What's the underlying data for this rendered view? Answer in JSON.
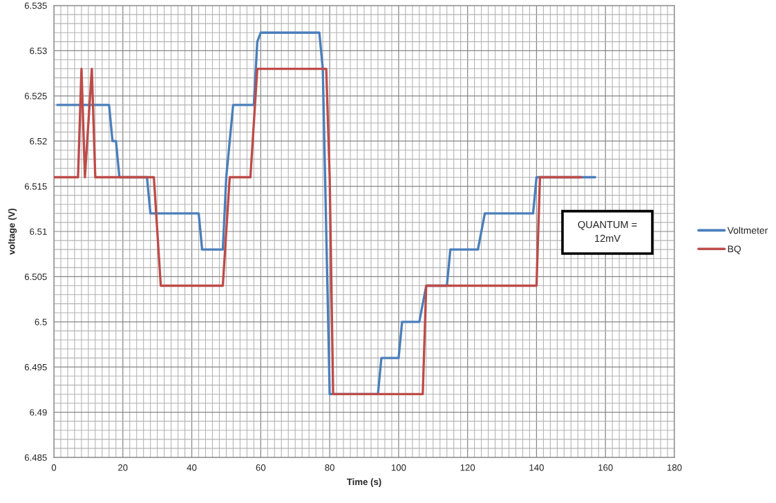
{
  "chart_data": {
    "type": "line",
    "xlabel": "Time (s)",
    "ylabel": "voltage (V)",
    "series": [
      {
        "name": "Voltmeter",
        "color": "#4a7ebb",
        "x": [
          1,
          16,
          17,
          18,
          19,
          27,
          28,
          42,
          43,
          49,
          50,
          52,
          58,
          59,
          60,
          77,
          78,
          80,
          94,
          95,
          100,
          101,
          106,
          108,
          114,
          115,
          123,
          125,
          139,
          140,
          157
        ],
        "values": [
          6.524,
          6.524,
          6.52,
          6.52,
          6.516,
          6.516,
          6.512,
          6.512,
          6.508,
          6.508,
          6.516,
          6.524,
          6.524,
          6.531,
          6.532,
          6.532,
          6.528,
          6.492,
          6.492,
          6.496,
          6.496,
          6.5,
          6.5,
          6.504,
          6.504,
          6.508,
          6.508,
          6.512,
          6.512,
          6.516,
          6.516
        ]
      },
      {
        "name": "BQ",
        "color": "#be4b48",
        "x": [
          0,
          7,
          8,
          9,
          11,
          12,
          29,
          31,
          49,
          51,
          57,
          59,
          79,
          80,
          81,
          107,
          108,
          140,
          141,
          153
        ],
        "values": [
          6.516,
          6.516,
          6.528,
          6.516,
          6.528,
          6.516,
          6.516,
          6.504,
          6.504,
          6.516,
          6.516,
          6.528,
          6.528,
          6.516,
          6.492,
          6.492,
          6.504,
          6.504,
          6.516,
          6.516
        ]
      }
    ],
    "xlim": [
      0,
      180
    ],
    "xticks": [
      0,
      20,
      40,
      60,
      80,
      100,
      120,
      140,
      160,
      180
    ],
    "ylim": [
      6.485,
      6.535
    ],
    "yticks": [
      6.485,
      6.49,
      6.495,
      6.5,
      6.505,
      6.51,
      6.515,
      6.52,
      6.525,
      6.53,
      6.535
    ],
    "grid": true,
    "legend": "right",
    "annotations": [
      "QUANTUM =\n12mV"
    ]
  }
}
